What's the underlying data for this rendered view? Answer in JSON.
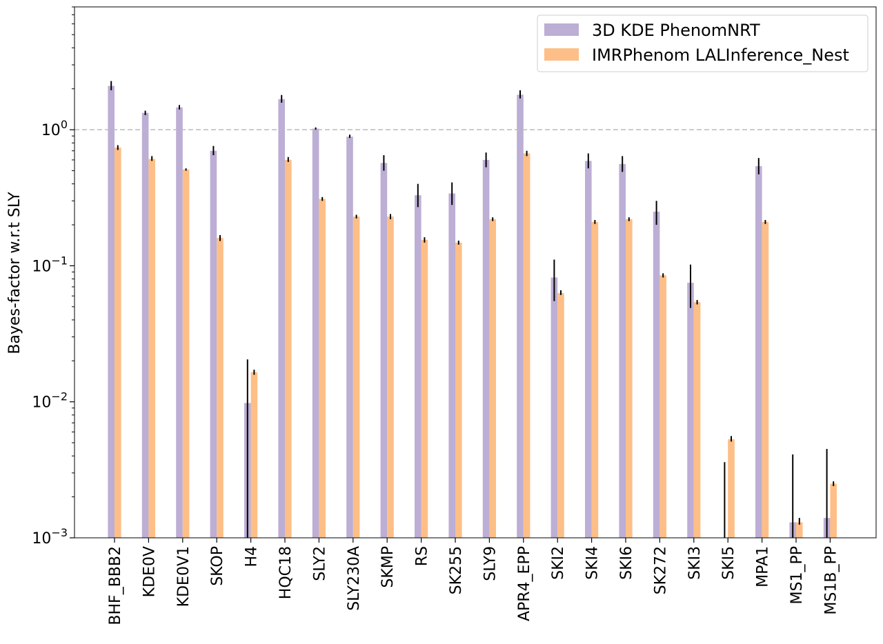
{
  "chart_data": {
    "type": "bar",
    "title": "",
    "xlabel": "",
    "ylabel": "Bayes-factor w.r.t SLY",
    "yscale": "log",
    "ylim": [
      0.001,
      8
    ],
    "yticks": [
      {
        "value": 0.001,
        "base": "10",
        "exp": "−3"
      },
      {
        "value": 0.01,
        "base": "10",
        "exp": "−2"
      },
      {
        "value": 0.1,
        "base": "10",
        "exp": "−1"
      },
      {
        "value": 1,
        "base": "10",
        "exp": "0"
      }
    ],
    "reference_line": {
      "y": 1,
      "style": "dashed",
      "color": "#bbbbbb"
    },
    "legend_position": "top-right",
    "categories": [
      "BHF_BBB2",
      "KDE0V",
      "KDE0V1",
      "SKOP",
      "H4",
      "HQC18",
      "SLY2",
      "SLY230A",
      "SKMP",
      "RS",
      "SK255",
      "SLY9",
      "APR4_EPP",
      "SKI2",
      "SKI4",
      "SKI6",
      "SK272",
      "SKI3",
      "SKI5",
      "MPA1",
      "MS1_PP",
      "MS1B_PP"
    ],
    "series": [
      {
        "name": "3D KDE PhenomNRT",
        "color": "#bcaed4",
        "values": [
          2.1,
          1.33,
          1.46,
          0.7,
          0.0098,
          1.68,
          1.02,
          0.89,
          0.57,
          0.33,
          0.34,
          0.6,
          1.81,
          0.082,
          0.59,
          0.56,
          0.25,
          0.075,
          0.0009,
          0.54,
          0.0013,
          0.0014
        ],
        "err_low": [
          1.95,
          1.28,
          1.41,
          0.65,
          0.0008,
          1.58,
          1.0,
          0.87,
          0.5,
          0.27,
          0.28,
          0.53,
          1.7,
          0.055,
          0.52,
          0.49,
          0.2,
          0.049,
          0.0008,
          0.47,
          0.0008,
          0.0008
        ],
        "err_high": [
          2.28,
          1.38,
          1.52,
          0.76,
          0.0205,
          1.8,
          1.04,
          0.92,
          0.65,
          0.4,
          0.41,
          0.68,
          1.95,
          0.111,
          0.67,
          0.64,
          0.3,
          0.102,
          0.0036,
          0.62,
          0.0041,
          0.0045
        ]
      },
      {
        "name": "IMRPhenom LALInference_Nest",
        "color": "#fdbf87",
        "values": [
          0.74,
          0.61,
          0.51,
          0.16,
          0.0165,
          0.6,
          0.31,
          0.23,
          0.23,
          0.155,
          0.148,
          0.22,
          0.67,
          0.063,
          0.21,
          0.22,
          0.085,
          0.054,
          0.0053,
          0.21,
          0.0013,
          0.0025
        ],
        "err_low": [
          0.71,
          0.59,
          0.5,
          0.152,
          0.0158,
          0.58,
          0.3,
          0.223,
          0.22,
          0.148,
          0.143,
          0.213,
          0.64,
          0.061,
          0.203,
          0.213,
          0.082,
          0.052,
          0.0051,
          0.203,
          0.00125,
          0.0024
        ],
        "err_high": [
          0.77,
          0.64,
          0.52,
          0.168,
          0.0172,
          0.63,
          0.32,
          0.237,
          0.24,
          0.162,
          0.153,
          0.227,
          0.7,
          0.066,
          0.217,
          0.227,
          0.088,
          0.056,
          0.0056,
          0.217,
          0.0014,
          0.0026
        ]
      }
    ]
  }
}
